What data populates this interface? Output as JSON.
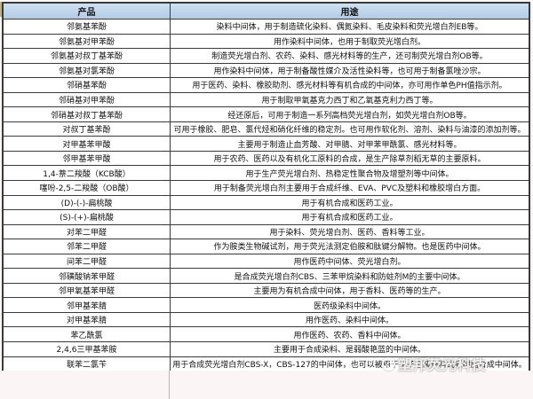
{
  "table": {
    "columns": {
      "product": "产品",
      "use": "用途"
    },
    "rows": [
      {
        "product": "邻氨基苯酚",
        "use": "染料中间体，用于制造硫化染料、偶氮染料、毛皮染料和荧光增白剂EB等。"
      },
      {
        "product": "邻氨基对甲苯酚",
        "use": "用作染料中间体，也用于制取荧光增白剂。"
      },
      {
        "product": "邻氨基对叔丁基苯酚",
        "use": "制造荧光增白剂、农药、染料、感光材料等的生产，还可制荧光增白剂OB等。"
      },
      {
        "product": "邻氨基对氯苯酚",
        "use": "用作染料中间体，用于制备酸性媒介及活性染料等，也可用于制备氯唑沙宗。"
      },
      {
        "product": "邻硝基苯酚",
        "use": "用于医药、染料、橡胶助剂、感光材料等有机合成的中间体，亦可用作单色PH值指示剂。"
      },
      {
        "product": "邻硝基对甲苯酚",
        "use": "用于制取甲氧基克力西丁和乙氧基克利力西丁等。"
      },
      {
        "product": "邻硝基对叔丁基苯酚",
        "use": "经还原后，可用于制造一系列高档荧光增白剂，如荧光增白剂OB等。"
      },
      {
        "product": "对叔丁基苯酚",
        "use": "可用于橡胶、肥皂、氯代烃和硝化纤维的稳定剂。也可用作软化剂、溶剂、染料与油漆的添加剂等。"
      },
      {
        "product": "对甲基苯甲酸",
        "use": "主要用于制造止血芳酸、对甲腈、对甲苯甲酰氯、感光材料等。"
      },
      {
        "product": "邻甲基苯甲酸",
        "use": "用于农药、医药以及有机化工原料的合成，是生产除草剂稻无草的主要原料。"
      },
      {
        "product": "1,4-萘二羧酸（KCB酸）",
        "use": "用于生产荧光增白剂、热稳定性聚合物及增塑剂等中间体。"
      },
      {
        "product": "噻吩-2,5-二羧酸（OB酸）",
        "use": "用于制备荧光增白剂主要用于合成纤维、EVA、PVC及塑料和橡胶增白方面。"
      },
      {
        "product": "(D)-(-)-扁桃酸",
        "use": "用于有机合成和医药工业。"
      },
      {
        "product": "(S)-(+)-扁桃酸",
        "use": "用于有机合成和医药工业。"
      },
      {
        "product": "对苯二甲醛",
        "use": "用于染料、荧光增白剂、医药、香料等工业。"
      },
      {
        "product": "邻苯二甲醛",
        "use": "作为胺类生物碱试剂，用于荧光法测定伯胺和肽键分解物。也是医药中间体。"
      },
      {
        "product": "间苯二甲醛",
        "use": "用作医药中间体、荧光增白剂。"
      },
      {
        "product": "邻磺酸钠苯甲醛",
        "use": "是合成荧光增白剂CBS、三苯甲烷染料和防蛀剂M的主要中间体。"
      },
      {
        "product": "邻甲氧基苯甲醛",
        "use": "主要用为有机合成中间体，用于香料、医药等的生产。"
      },
      {
        "product": "邻甲基苯腈",
        "use": "医药级染料中间体。"
      },
      {
        "product": "对甲基苯腈",
        "use": "用作医药、染料中间体。"
      },
      {
        "product": "苯乙酰氯",
        "use": "用作医药、农药、香料中间体。"
      },
      {
        "product": "2,4,6三甲基苯胺",
        "use": "主要用于合成染料、是弱酸艳蓝的中间体。"
      },
      {
        "product": "联苯二氯苄",
        "use": "用于合成荧光增白剂CBS-X，CBS-127的中间体，也可以被用于电子包装材料或者树脂合成中间体。"
      }
    ]
  },
  "watermark": {
    "text": "塑邦荧光科技"
  },
  "colors": {
    "header_bg": "#bdd2e8",
    "grid_border": "#3a3a3a",
    "corner_tab": "#bfb183",
    "watermark_text": "#ffffff"
  }
}
